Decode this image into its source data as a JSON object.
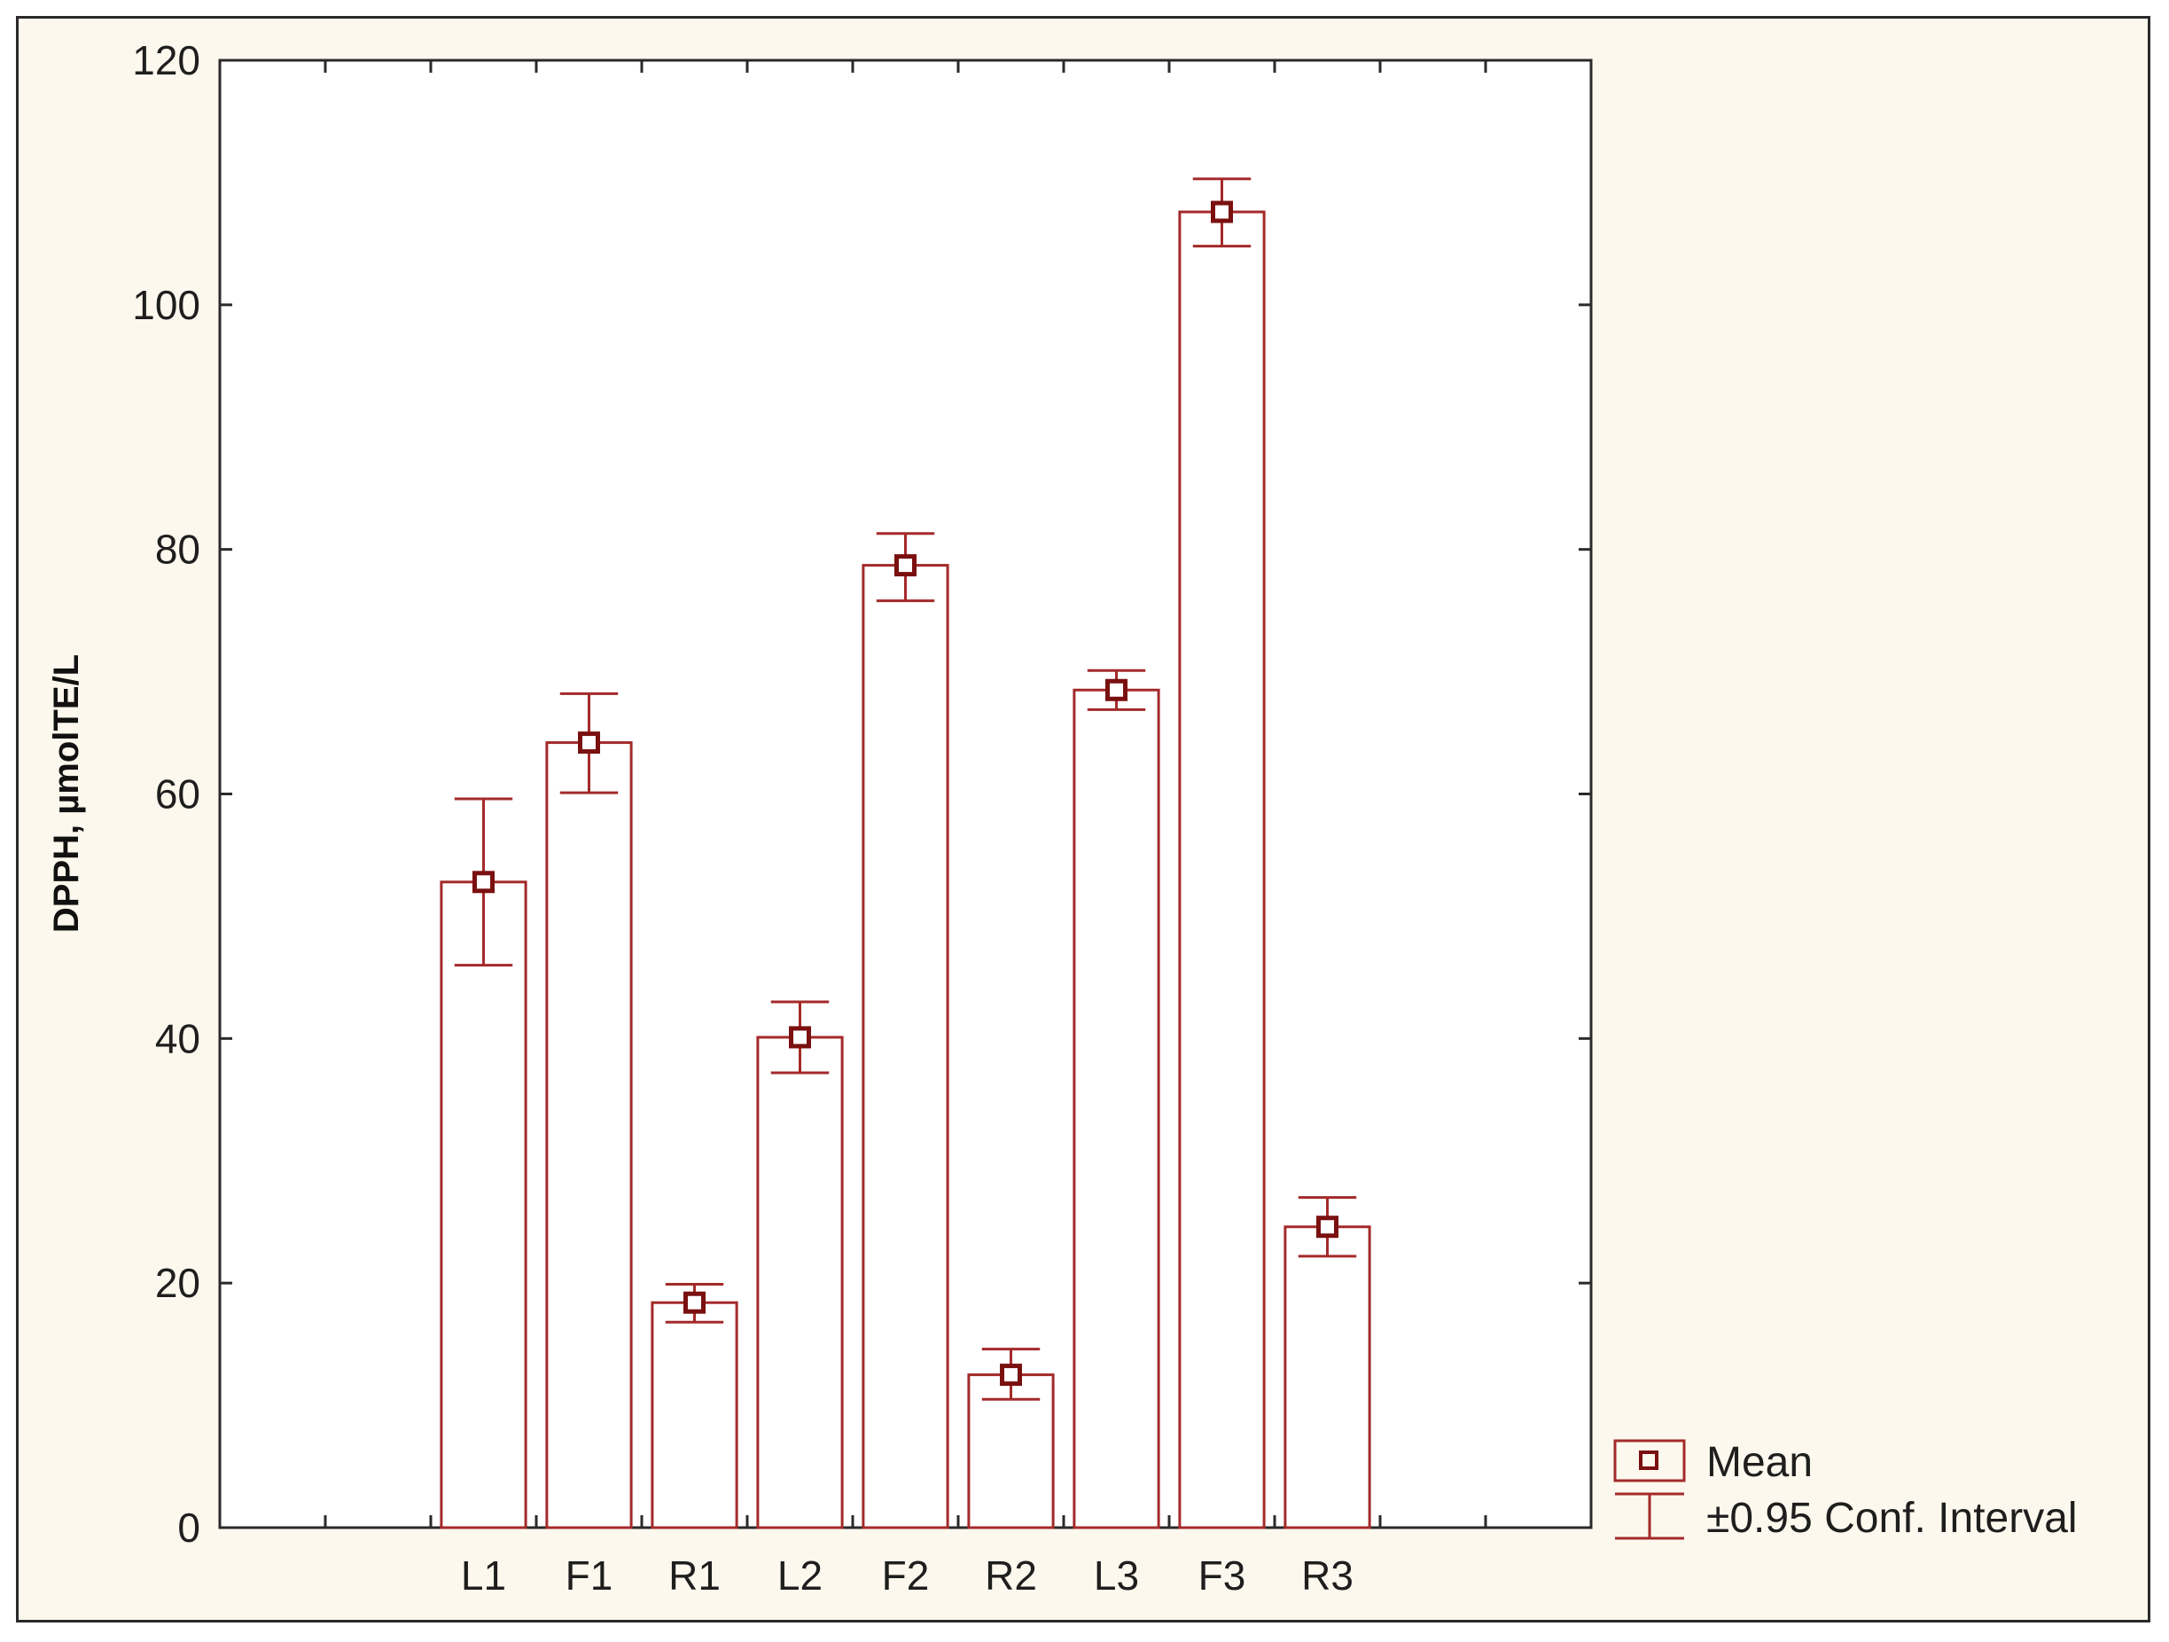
{
  "chart_data": {
    "type": "bar",
    "title": "",
    "xlabel": "",
    "ylabel": "DPPH, µmolTE/L",
    "ylim": [
      0,
      120
    ],
    "yticks": [
      0,
      20,
      40,
      60,
      80,
      100,
      120
    ],
    "grid": false,
    "categories": [
      "L1",
      "F1",
      "R1",
      "L2",
      "F2",
      "R2",
      "L3",
      "F3",
      "R3"
    ],
    "values": [
      52.8,
      64.2,
      18.4,
      40.1,
      78.7,
      12.5,
      68.5,
      107.6,
      24.6
    ],
    "ci_lower": [
      46.0,
      60.1,
      16.8,
      37.2,
      75.8,
      10.5,
      66.9,
      104.8,
      22.2
    ],
    "ci_upper": [
      59.6,
      68.2,
      19.9,
      43.0,
      81.3,
      14.6,
      70.1,
      110.3,
      27.0
    ],
    "legend": {
      "position": "bottom-right, outside plot",
      "mean_label": "Mean",
      "ci_label": "±0.95 Conf. Interval"
    },
    "colors": {
      "bar_stroke": "#a42a2a",
      "marker": "#7a1010",
      "plot_background": "#ffffff",
      "figure_background": "#fcf8ed",
      "axis": "#2a2a2a"
    }
  }
}
